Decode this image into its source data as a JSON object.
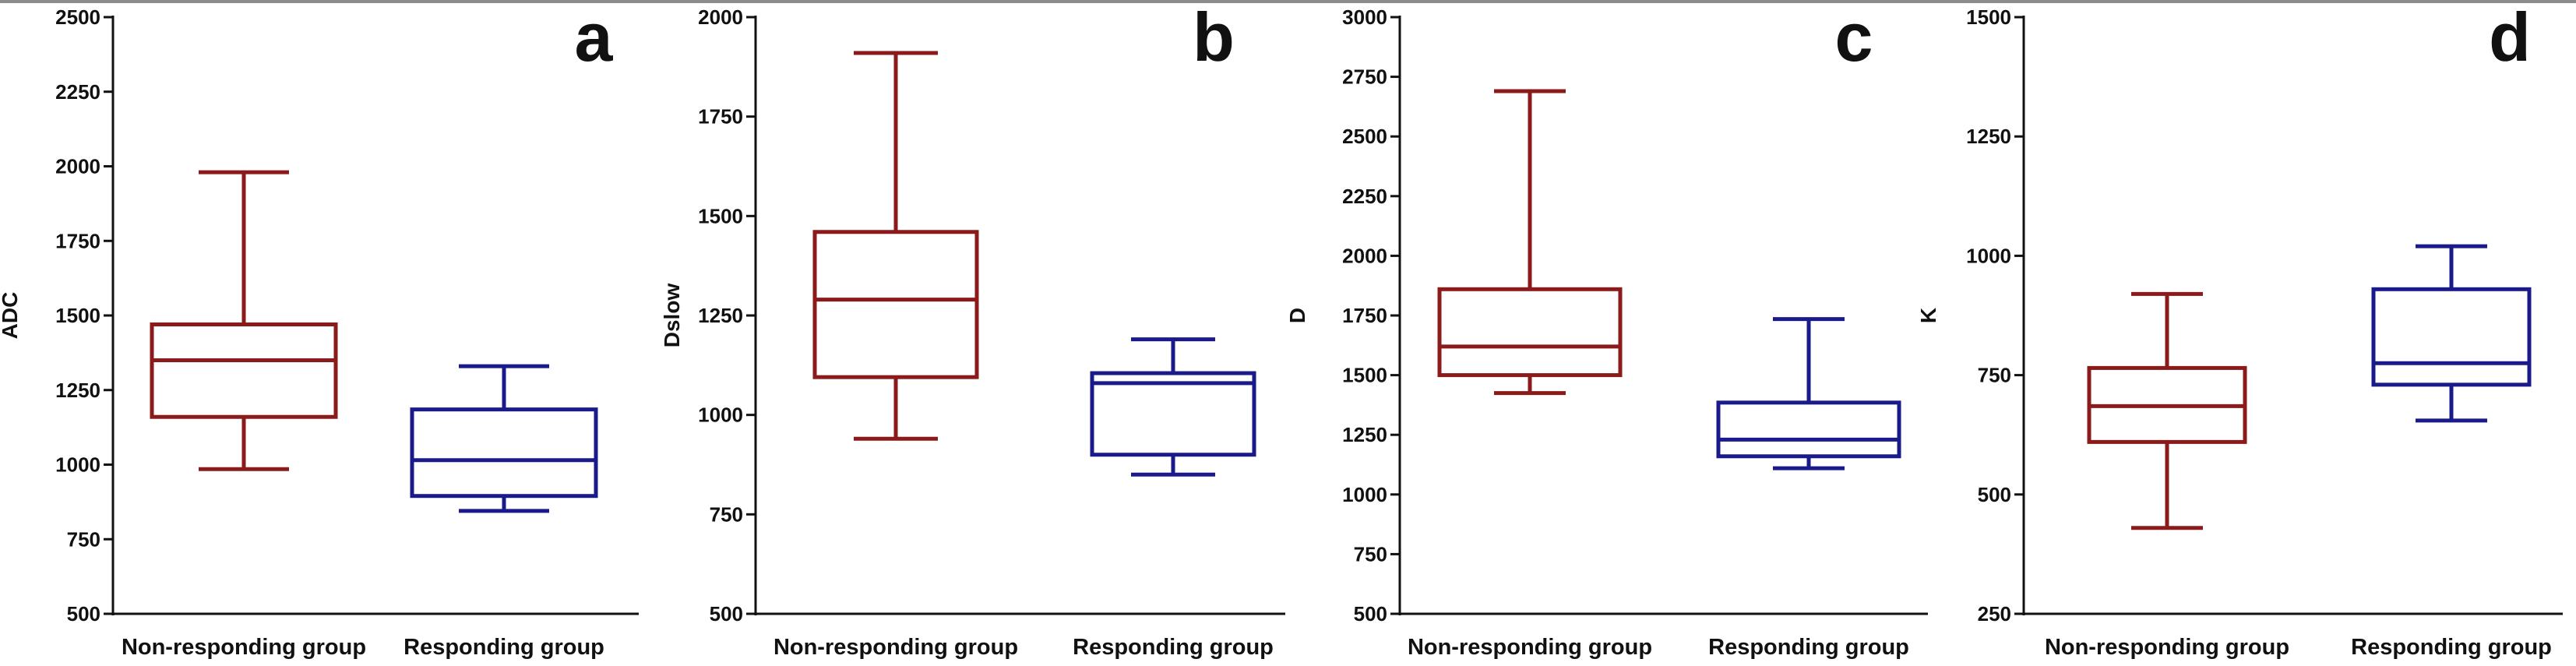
{
  "colors": {
    "non_responding": "#8b1a1a",
    "responding": "#1a1a8b",
    "axis": "#111111",
    "panel_letter": "#111111"
  },
  "chart_data": [
    {
      "type": "boxplot",
      "panel": "a",
      "ylabel": "ADC",
      "ylim": [
        500,
        2500
      ],
      "yticks": [
        "500",
        "750",
        "1000",
        "1250",
        "1500",
        "1750",
        "2000",
        "2250",
        "2500"
      ],
      "categories": [
        "Non-responding group",
        "Responding group"
      ],
      "series": [
        {
          "name": "Non-responding group",
          "min": 985,
          "q1": 1160,
          "median": 1350,
          "q3": 1470,
          "max": 1980
        },
        {
          "name": "Responding group",
          "min": 845,
          "q1": 895,
          "median": 1015,
          "q3": 1185,
          "max": 1330
        }
      ]
    },
    {
      "type": "boxplot",
      "panel": "b",
      "ylabel": "Dslow",
      "ylim": [
        500,
        2000
      ],
      "yticks": [
        "500",
        "750",
        "1000",
        "1250",
        "1500",
        "1750",
        "2000"
      ],
      "categories": [
        "Non-responding group",
        "Responding group"
      ],
      "series": [
        {
          "name": "Non-responding group",
          "min": 940,
          "q1": 1095,
          "median": 1290,
          "q3": 1460,
          "max": 1910
        },
        {
          "name": "Responding group",
          "min": 850,
          "q1": 900,
          "median": 1080,
          "q3": 1105,
          "max": 1190
        }
      ]
    },
    {
      "type": "boxplot",
      "panel": "c",
      "ylabel": "D",
      "ylim": [
        500,
        3000
      ],
      "yticks": [
        "500",
        "750",
        "1000",
        "1250",
        "1500",
        "1750",
        "2000",
        "2250",
        "2500",
        "2750",
        "3000"
      ],
      "categories": [
        "Non-responding group",
        "Responding group"
      ],
      "series": [
        {
          "name": "Non-responding group",
          "min": 1425,
          "q1": 1500,
          "median": 1620,
          "q3": 1860,
          "max": 2690
        },
        {
          "name": "Responding group",
          "min": 1110,
          "q1": 1160,
          "median": 1230,
          "q3": 1385,
          "max": 1735
        }
      ]
    },
    {
      "type": "boxplot",
      "panel": "d",
      "ylabel": "K",
      "ylim": [
        250,
        1500
      ],
      "yticks": [
        "250",
        "500",
        "750",
        "1000",
        "1250",
        "1500"
      ],
      "categories": [
        "Non-responding group",
        "Responding group"
      ],
      "series": [
        {
          "name": "Non-responding group",
          "min": 430,
          "q1": 610,
          "median": 685,
          "q3": 765,
          "max": 920
        },
        {
          "name": "Responding group",
          "min": 655,
          "q1": 730,
          "median": 775,
          "q3": 930,
          "max": 1020
        }
      ]
    }
  ]
}
